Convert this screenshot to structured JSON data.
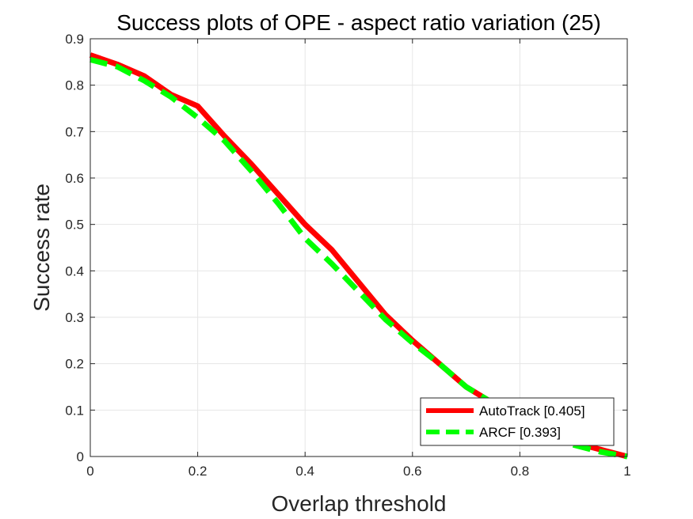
{
  "chart_data": {
    "type": "line",
    "title": "Success plots of OPE - aspect ratio variation (25)",
    "xlabel": "Overlap threshold",
    "ylabel": "Success rate",
    "xlim": [
      0,
      1
    ],
    "ylim": [
      0,
      0.9
    ],
    "xticks": [
      0,
      0.2,
      0.4,
      0.6,
      0.8,
      1
    ],
    "xtick_labels": [
      "0",
      "0.2",
      "0.4",
      "0.6",
      "0.8",
      "1"
    ],
    "yticks": [
      0,
      0.1,
      0.2,
      0.3,
      0.4,
      0.5,
      0.6,
      0.7,
      0.8,
      0.9
    ],
    "ytick_labels": [
      "0",
      "0.1",
      "0.2",
      "0.3",
      "0.4",
      "0.5",
      "0.6",
      "0.7",
      "0.8",
      "0.9"
    ],
    "grid": true,
    "legend_position": "bottom-right",
    "x": [
      0,
      0.05,
      0.1,
      0.15,
      0.2,
      0.25,
      0.3,
      0.35,
      0.4,
      0.45,
      0.5,
      0.55,
      0.6,
      0.65,
      0.7,
      0.75,
      0.8,
      0.85,
      0.9,
      0.95,
      1
    ],
    "series": [
      {
        "name": "AutoTrack [0.405]",
        "color": "#ff0000",
        "style": "solid",
        "values": [
          0.865,
          0.845,
          0.82,
          0.78,
          0.755,
          0.69,
          0.63,
          0.565,
          0.5,
          0.445,
          0.375,
          0.305,
          0.25,
          0.2,
          0.15,
          0.115,
          0.08,
          0.055,
          0.03,
          0.015,
          0.0
        ]
      },
      {
        "name": "ARCF [0.393]",
        "color": "#00ff00",
        "style": "dashed",
        "values": [
          0.855,
          0.84,
          0.81,
          0.775,
          0.73,
          0.68,
          0.615,
          0.545,
          0.47,
          0.415,
          0.355,
          0.295,
          0.245,
          0.2,
          0.15,
          0.115,
          0.08,
          0.05,
          0.025,
          0.01,
          0.0
        ]
      }
    ]
  }
}
